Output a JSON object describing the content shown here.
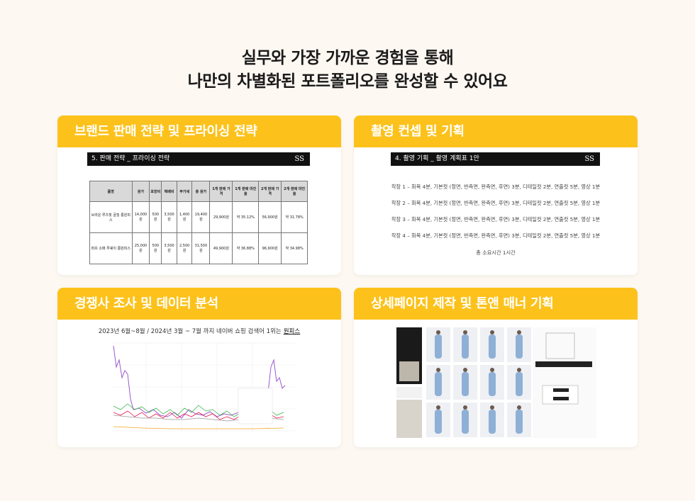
{
  "header": {
    "lines": [
      "실무와 가장 가까운 경험을 통해",
      "나만의 차별화된 포트폴리오를 완성할 수 있어요"
    ]
  },
  "cards": [
    {
      "title": "브랜드 판매 전략 및 프라이싱 전략",
      "doc_title": "5. 판매 전략 _ 프라이싱 전략",
      "logo": "SS",
      "table": {
        "header": [
          "품명",
          "원가",
          "포장비",
          "택배비",
          "부가세",
          "총 원가",
          "1개 판매 가격",
          "1개 판매 마진율",
          "2개 판매 가격",
          "2개 판매 마진율"
        ],
        "rows": [
          [
            "브라운 루즈핏 골징 롱원피스",
            "14,000원",
            "500원",
            "3,500원",
            "1,400원",
            "19,400원",
            "29,900원",
            "약 35.12%",
            "56,900원",
            "약 31.78%"
          ],
          [
            "퍼프 소매 루쉐이 롱원피스",
            "25,000원",
            "500원",
            "3,500원",
            "2,500원",
            "31,500원",
            "49,900원",
            "약 36.88%",
            "96,900원",
            "약 34.98%"
          ]
        ]
      }
    },
    {
      "title": "촬영 컨셉 및 기획",
      "doc_title": "4. 촬영 기획 _ 촬영 계획표 1안",
      "logo": "SS",
      "lines": [
        "착장 1 – 화복 4분, 기본컷 (정면, 반측면, 완측면, 후면) 3분, 디테일컷 2분, 연출컷 5분, 영상 1분",
        "착장 2 – 화복 4분, 기본컷 (정면, 반측면, 완측면, 후면) 3분, 디테일컷 2분, 연출컷 5분, 영상 1분",
        "착장 3 – 화복 4분, 기본컷 (정면, 반측면, 완측면, 후면) 3분, 디테일컷 2분, 연출컷 5분, 영상 1분",
        "착장 4 – 화복 4분, 기본컷 (정면, 반측면, 완측면, 후면) 3분, 디테일컷 2분, 연출컷 5분, 영상 1분"
      ],
      "total": "총 소요시간 1시간"
    },
    {
      "title": "경쟁사 조사 및 데이터 분석",
      "caption": "2023년 6월~8월 / 2024년 3월 ~ 7월 까지 네이버 쇼핑 검색어 1위는",
      "caption_emphasis": "원피스"
    },
    {
      "title": "상세페이지 제작 및 톤앤 매너 기획"
    }
  ]
}
